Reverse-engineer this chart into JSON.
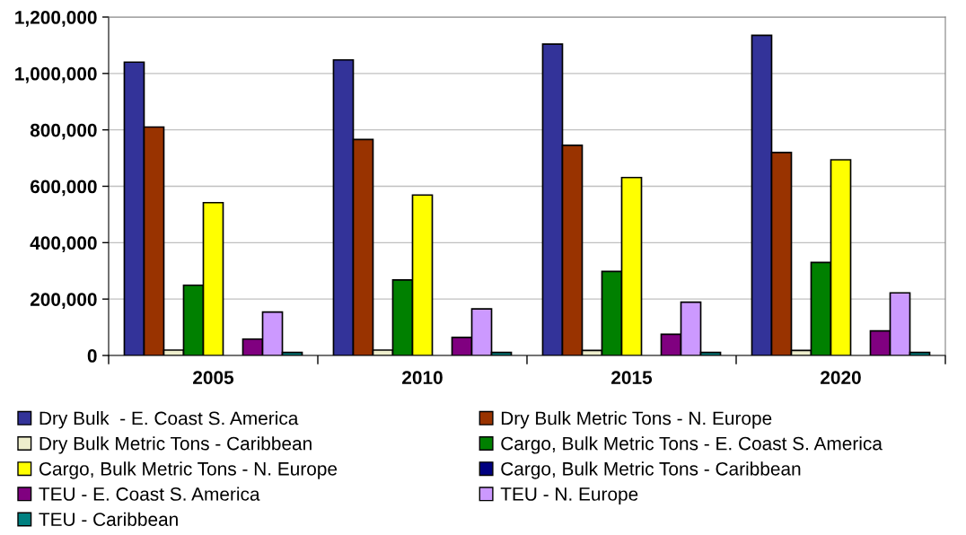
{
  "chart_data": {
    "type": "bar",
    "categories": [
      "2005",
      "2010",
      "2015",
      "2020"
    ],
    "series": [
      {
        "name": "Dry Bulk  - E. Coast S. America",
        "color": "#333399",
        "values": [
          1040000,
          1048000,
          1104000,
          1135000
        ]
      },
      {
        "name": "Dry Bulk Metric Tons - N. Europe",
        "color": "#993300",
        "values": [
          810000,
          766000,
          745000,
          720000
        ]
      },
      {
        "name": "Dry Bulk Metric Tons - Caribbean",
        "color": "#eeeecc",
        "values": [
          19000,
          19000,
          18000,
          18000
        ]
      },
      {
        "name": "Cargo, Bulk Metric Tons - E. Coast S. America",
        "color": "#008000",
        "values": [
          249000,
          268000,
          298000,
          330000
        ]
      },
      {
        "name": "Cargo, Bulk Metric Tons - N. Europe",
        "color": "#ffff00",
        "values": [
          542000,
          569000,
          631000,
          694000
        ]
      },
      {
        "name": "Cargo, Bulk Metric Tons - Caribbean",
        "color": "#000080",
        "values": [
          null,
          null,
          null,
          null
        ]
      },
      {
        "name": "TEU - E. Coast S. America",
        "color": "#800080",
        "values": [
          58000,
          64000,
          75000,
          87000
        ]
      },
      {
        "name": "TEU - N. Europe",
        "color": "#cc99ff",
        "values": [
          154000,
          165000,
          189000,
          222000
        ]
      },
      {
        "name": "TEU - Caribbean",
        "color": "#008080",
        "values": [
          11000,
          11000,
          11000,
          11000
        ]
      }
    ],
    "ylim": [
      0,
      1200000
    ],
    "yticks": [
      0,
      {
        "value": 200000,
        "label": "200,000"
      },
      {
        "value": 400000,
        "label": "400,000"
      },
      {
        "value": 600000,
        "label": "600,000"
      },
      {
        "value": 800000,
        "label": "800,000"
      },
      {
        "value": 1000000,
        "label": "1,000,000"
      },
      {
        "value": 1200000,
        "label": "1,200,000"
      }
    ],
    "grid": "y",
    "legend": "bottom"
  }
}
